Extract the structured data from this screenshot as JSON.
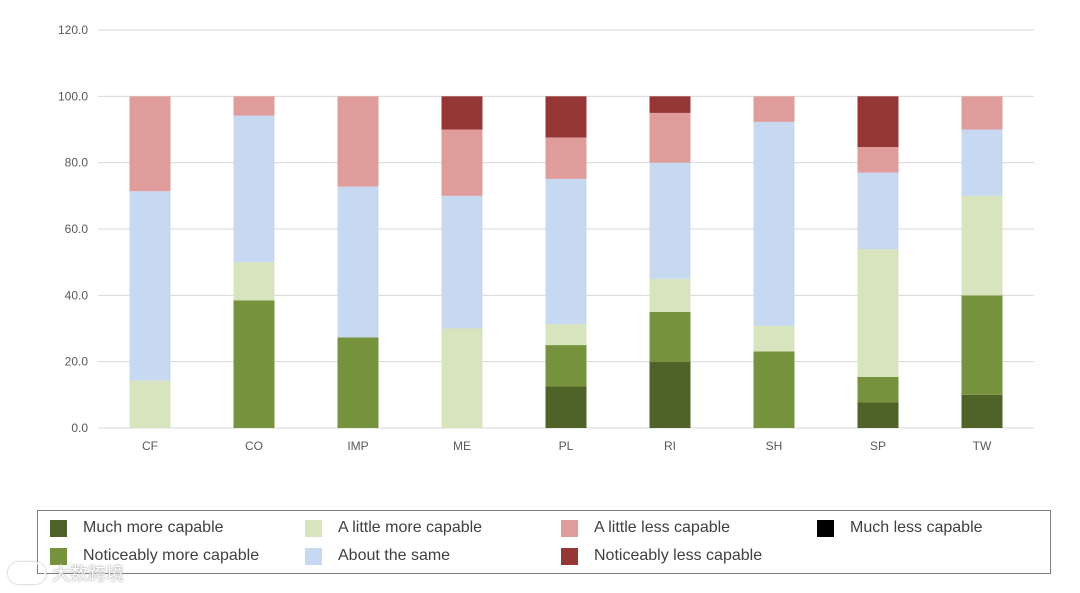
{
  "chart_data": {
    "type": "bar",
    "stacked": true,
    "categories": [
      "CF",
      "CO",
      "IMP",
      "ME",
      "PL",
      "RI",
      "SH",
      "SP",
      "TW"
    ],
    "ylim": [
      0,
      120
    ],
    "yticks": [
      "0.0",
      "20.0",
      "40.0",
      "60.0",
      "80.0",
      "100.0",
      "120.0"
    ],
    "ytick_values": [
      0,
      20,
      40,
      60,
      80,
      100,
      120
    ],
    "grid": true,
    "legend_position": "bottom",
    "series": [
      {
        "name": "Much more capable",
        "color": "#4f6228",
        "values": [
          0,
          0,
          0,
          0,
          12.5,
          20,
          0,
          7.7,
          10
        ]
      },
      {
        "name": "Noticeably more capable",
        "color": "#76923c",
        "values": [
          0,
          38.5,
          27.3,
          0,
          12.5,
          15,
          23.1,
          7.7,
          30
        ]
      },
      {
        "name": "A little more capable",
        "color": "#d7e4bd",
        "values": [
          14.3,
          11.5,
          0,
          30,
          6.3,
          10,
          7.7,
          38.5,
          30
        ]
      },
      {
        "name": "About the same",
        "color": "#c6d9f1",
        "values": [
          57.1,
          44.2,
          45.5,
          40,
          43.8,
          35,
          61.5,
          23.1,
          20
        ]
      },
      {
        "name": "A little less capable",
        "color": "#e09c9b",
        "values": [
          28.6,
          5.8,
          27.2,
          20,
          12.5,
          15,
          7.7,
          7.7,
          10
        ]
      },
      {
        "name": "Noticeably less capable",
        "color": "#953735",
        "values": [
          0,
          0,
          0,
          10,
          12.4,
          5,
          0,
          15.3,
          0
        ]
      },
      {
        "name": "Much less capable",
        "color": "#000000",
        "values": [
          0,
          0,
          0,
          0,
          0,
          0,
          0,
          0,
          0
        ]
      }
    ]
  },
  "legend_order": [
    "Much more capable",
    "A little more capable",
    "A little less capable",
    "Much less capable",
    "Noticeably more capable",
    "About the same",
    "Noticeably less capable"
  ],
  "watermark": {
    "text": "大数跨境"
  }
}
